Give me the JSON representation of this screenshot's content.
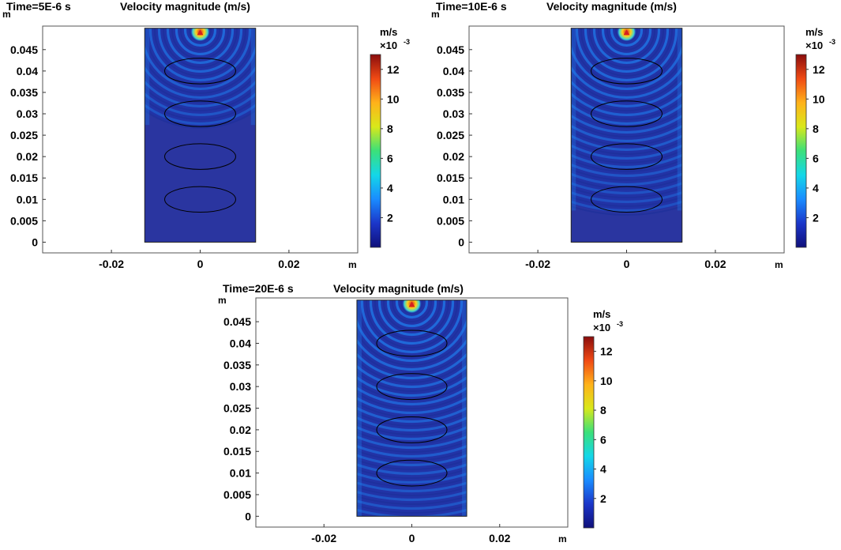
{
  "chart_data": [
    {
      "type": "heatmap",
      "time_label": "Time=5E-6 s",
      "title": "Velocity magnitude (m/s)",
      "field": "Velocity magnitude",
      "x_unit": "m",
      "y_unit": "m",
      "x_ticks": [
        -0.02,
        0,
        0.02
      ],
      "x_tick_labels": [
        "-0.02",
        "0",
        "0.02"
      ],
      "y_ticks": [
        0,
        0.005,
        0.01,
        0.015,
        0.02,
        0.025,
        0.03,
        0.035,
        0.04,
        0.045
      ],
      "y_tick_labels": [
        "0",
        "0.005",
        "0.01",
        "0.015",
        "0.02",
        "0.025",
        "0.03",
        "0.035",
        "0.04",
        "0.045"
      ],
      "xlim": [
        -0.0355,
        0.0355
      ],
      "ylim": [
        -0.0025,
        0.0505
      ],
      "domain": {
        "x": [
          -0.0125,
          0.0125
        ],
        "y": [
          0,
          0.05
        ]
      },
      "source": {
        "x": 0,
        "y": 0.0495
      },
      "inclusions": [
        {
          "cx": 0,
          "cy": 0.04,
          "rx": 0.008,
          "ry": 0.003
        },
        {
          "cx": 0,
          "cy": 0.03,
          "rx": 0.008,
          "ry": 0.003
        },
        {
          "cx": 0,
          "cy": 0.02,
          "rx": 0.008,
          "ry": 0.003
        },
        {
          "cx": 0,
          "cy": 0.01,
          "rx": 0.008,
          "ry": 0.003
        }
      ],
      "wavefront_y": 0.028,
      "colorbar": {
        "unit": "m/s",
        "scale": "×10",
        "exponent": "-3",
        "range": [
          0,
          13
        ],
        "ticks": [
          2,
          4,
          6,
          8,
          10,
          12
        ],
        "tick_labels": [
          "2",
          "4",
          "6",
          "8",
          "10",
          "12"
        ]
      }
    },
    {
      "type": "heatmap",
      "time_label": "Time=10E-6 s",
      "title": "Velocity magnitude (m/s)",
      "field": "Velocity magnitude",
      "x_unit": "m",
      "y_unit": "m",
      "x_ticks": [
        -0.02,
        0,
        0.02
      ],
      "x_tick_labels": [
        "-0.02",
        "0",
        "0.02"
      ],
      "y_ticks": [
        0,
        0.005,
        0.01,
        0.015,
        0.02,
        0.025,
        0.03,
        0.035,
        0.04,
        0.045
      ],
      "y_tick_labels": [
        "0",
        "0.005",
        "0.01",
        "0.015",
        "0.02",
        "0.025",
        "0.03",
        "0.035",
        "0.04",
        "0.045"
      ],
      "xlim": [
        -0.0355,
        0.0355
      ],
      "ylim": [
        -0.0025,
        0.0505
      ],
      "domain": {
        "x": [
          -0.0125,
          0.0125
        ],
        "y": [
          0,
          0.05
        ]
      },
      "source": {
        "x": 0,
        "y": 0.0495
      },
      "inclusions": [
        {
          "cx": 0,
          "cy": 0.04,
          "rx": 0.008,
          "ry": 0.003
        },
        {
          "cx": 0,
          "cy": 0.03,
          "rx": 0.008,
          "ry": 0.003
        },
        {
          "cx": 0,
          "cy": 0.02,
          "rx": 0.008,
          "ry": 0.003
        },
        {
          "cx": 0,
          "cy": 0.01,
          "rx": 0.008,
          "ry": 0.003
        }
      ],
      "wavefront_y": 0.008,
      "colorbar": {
        "unit": "m/s",
        "scale": "×10",
        "exponent": "-3",
        "range": [
          0,
          13
        ],
        "ticks": [
          2,
          4,
          6,
          8,
          10,
          12
        ],
        "tick_labels": [
          "2",
          "4",
          "6",
          "8",
          "10",
          "12"
        ]
      }
    },
    {
      "type": "heatmap",
      "time_label": "Time=20E-6 s",
      "title": "Velocity magnitude (m/s)",
      "field": "Velocity magnitude",
      "x_unit": "m",
      "y_unit": "m",
      "x_ticks": [
        -0.02,
        0,
        0.02
      ],
      "x_tick_labels": [
        "-0.02",
        "0",
        "0.02"
      ],
      "y_ticks": [
        0,
        0.005,
        0.01,
        0.015,
        0.02,
        0.025,
        0.03,
        0.035,
        0.04,
        0.045
      ],
      "y_tick_labels": [
        "0",
        "0.005",
        "0.01",
        "0.015",
        "0.02",
        "0.025",
        "0.03",
        "0.035",
        "0.04",
        "0.045"
      ],
      "xlim": [
        -0.0355,
        0.0355
      ],
      "ylim": [
        -0.0025,
        0.0505
      ],
      "domain": {
        "x": [
          -0.0125,
          0.0125
        ],
        "y": [
          0,
          0.05
        ]
      },
      "source": {
        "x": 0,
        "y": 0.0495
      },
      "inclusions": [
        {
          "cx": 0,
          "cy": 0.04,
          "rx": 0.008,
          "ry": 0.003
        },
        {
          "cx": 0,
          "cy": 0.03,
          "rx": 0.008,
          "ry": 0.003
        },
        {
          "cx": 0,
          "cy": 0.02,
          "rx": 0.008,
          "ry": 0.003
        },
        {
          "cx": 0,
          "cy": 0.01,
          "rx": 0.008,
          "ry": 0.003
        }
      ],
      "wavefront_y": -0.01,
      "colorbar": {
        "unit": "m/s",
        "scale": "×10",
        "exponent": "-3",
        "range": [
          0,
          13
        ],
        "ticks": [
          2,
          4,
          6,
          8,
          10,
          12
        ],
        "tick_labels": [
          "2",
          "4",
          "6",
          "8",
          "10",
          "12"
        ]
      }
    }
  ],
  "colors": {
    "background_field": "#2233a6",
    "ring_bright": "#1f78e8",
    "ring_dark": "#1c2e9a",
    "unexcited": "#2a35a0",
    "source_peak": "#d42020",
    "source_mid": "#ffd21a",
    "colormap": [
      "#10107a",
      "#1b36c9",
      "#1a8cff",
      "#14d7e8",
      "#3be07a",
      "#d9e81a",
      "#ffb21a",
      "#f04a14",
      "#8a0d0d"
    ]
  }
}
